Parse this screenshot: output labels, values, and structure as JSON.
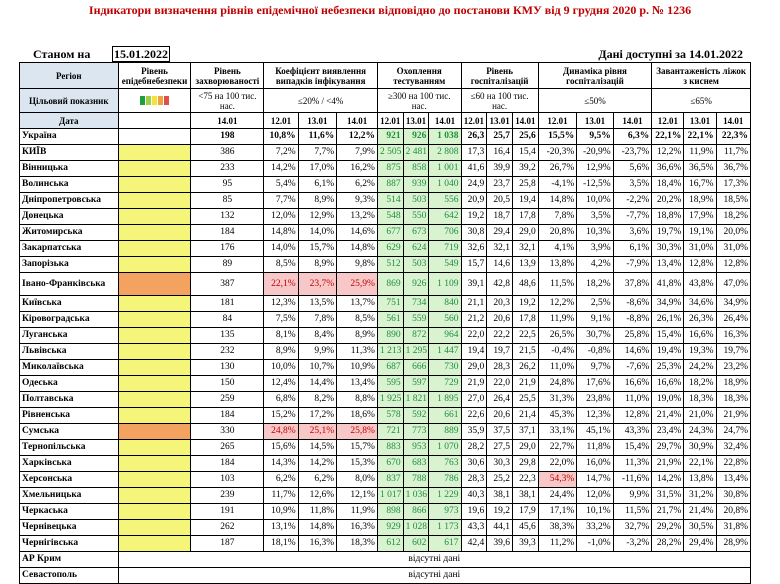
{
  "title": "Індикатори визначення рівнів епідемічної небезпеки відповідно до постанови КМУ від 9 грудня 2020 р. № 1236",
  "as_of_label": "Станом на",
  "as_of_date": "15.01.2022",
  "data_available": "Дані доступні за 14.01.2022",
  "headers": {
    "region": "Регіон",
    "epi_level": "Рівень епідебнебезпеки",
    "incidence": "Рівень захворюваності",
    "detection": "Коефіцієнт виявлення випадків інфікування",
    "testing": "Охоплення тестуванням",
    "hosp": "Рівень госпіталізацій",
    "dyn": "Динаміка рівня госпіталізацій",
    "beds": "Завантаженість ліжок з киснем",
    "target": "Цільовий показник",
    "date": "Дата",
    "t_incidence": "<75 на 100 тис. нас.",
    "t_detection": "≤20% / <4%",
    "t_testing": "≥300 на 100 тис. нас.",
    "t_hosp": "≤60 на 100 тис. нас.",
    "t_dyn": "≤50%",
    "t_beds": "≤65%",
    "d1401": "14.01",
    "d1201": "12.01",
    "d1301": "13.01"
  },
  "legend_colors": [
    "#1f9e3a",
    "#9bd24a",
    "#f2e23a",
    "#f2a23a",
    "#e0504a"
  ],
  "missing_text": "відсутні дані",
  "rows": [
    {
      "name": "Україна",
      "lvl": "",
      "inc": "198",
      "det": [
        "10,8%",
        "11,6%",
        "12,2%"
      ],
      "test": [
        "921",
        "926",
        "1 038"
      ],
      "hosp": [
        "26,3",
        "25,7",
        "25,6"
      ],
      "dyn": [
        "15,5%",
        "9,5%",
        "6,3%"
      ],
      "beds": [
        "22,1%",
        "22,1%",
        "22,3%"
      ]
    },
    {
      "name": "КИЇВ",
      "lvl": "y",
      "inc": "386",
      "det": [
        "7,2%",
        "7,7%",
        "7,9%"
      ],
      "test": [
        "2 505",
        "2 481",
        "2 808"
      ],
      "hosp": [
        "17,3",
        "16,4",
        "15,4"
      ],
      "dyn": [
        "-20,3%",
        "-20,9%",
        "-23,7%"
      ],
      "beds": [
        "12,2%",
        "11,9%",
        "11,7%"
      ]
    },
    {
      "name": "Вінницька",
      "lvl": "y",
      "inc": "233",
      "det": [
        "14,2%",
        "17,0%",
        "16,2%"
      ],
      "test": [
        "875",
        "858",
        "1 001"
      ],
      "hosp": [
        "41,6",
        "39,9",
        "39,2"
      ],
      "dyn": [
        "26,7%",
        "12,9%",
        "5,6%"
      ],
      "beds": [
        "36,6%",
        "36,5%",
        "36,7%"
      ]
    },
    {
      "name": "Волинська",
      "lvl": "y",
      "inc": "95",
      "det": [
        "5,4%",
        "6,1%",
        "6,2%"
      ],
      "test": [
        "887",
        "939",
        "1 040"
      ],
      "hosp": [
        "24,9",
        "23,7",
        "25,8"
      ],
      "dyn": [
        "-4,1%",
        "-12,5%",
        "3,5%"
      ],
      "beds": [
        "18,4%",
        "16,7%",
        "17,3%"
      ]
    },
    {
      "name": "Дніпропетровська",
      "lvl": "y",
      "inc": "85",
      "det": [
        "7,7%",
        "8,9%",
        "9,3%"
      ],
      "test": [
        "514",
        "503",
        "556"
      ],
      "hosp": [
        "20,9",
        "20,5",
        "19,4"
      ],
      "dyn": [
        "14,8%",
        "10,0%",
        "-2,2%"
      ],
      "beds": [
        "20,2%",
        "18,9%",
        "18,5%"
      ]
    },
    {
      "name": "Донецька",
      "lvl": "y",
      "inc": "132",
      "det": [
        "12,0%",
        "12,9%",
        "13,2%"
      ],
      "test": [
        "548",
        "550",
        "642"
      ],
      "hosp": [
        "19,2",
        "18,7",
        "17,8"
      ],
      "dyn": [
        "7,8%",
        "3,5%",
        "-7,7%"
      ],
      "beds": [
        "18,8%",
        "17,9%",
        "18,2%"
      ]
    },
    {
      "name": "Житомирська",
      "lvl": "y",
      "inc": "184",
      "det": [
        "14,8%",
        "14,0%",
        "14,6%"
      ],
      "test": [
        "677",
        "673",
        "706"
      ],
      "hosp": [
        "30,8",
        "29,4",
        "29,0"
      ],
      "dyn": [
        "20,8%",
        "10,3%",
        "3,6%"
      ],
      "beds": [
        "19,7%",
        "19,1%",
        "20,0%"
      ]
    },
    {
      "name": "Закарпатська",
      "lvl": "y",
      "inc": "176",
      "det": [
        "14,0%",
        "15,7%",
        "14,8%"
      ],
      "test": [
        "629",
        "624",
        "719"
      ],
      "hosp": [
        "32,6",
        "32,1",
        "32,1"
      ],
      "dyn": [
        "4,1%",
        "3,9%",
        "6,1%"
      ],
      "beds": [
        "30,3%",
        "31,0%",
        "31,0%"
      ]
    },
    {
      "name": "Запорізька",
      "lvl": "y",
      "inc": "89",
      "det": [
        "8,5%",
        "8,9%",
        "9,8%"
      ],
      "test": [
        "512",
        "503",
        "549"
      ],
      "hosp": [
        "15,7",
        "14,6",
        "13,9"
      ],
      "dyn": [
        "13,8%",
        "4,2%",
        "-7,9%"
      ],
      "beds": [
        "13,4%",
        "12,8%",
        "12,8%"
      ]
    },
    {
      "name": "Івано-Франківська",
      "lvl": "o",
      "inc": "387",
      "det": [
        "22,1%",
        "23,7%",
        "25,9%"
      ],
      "detRed": true,
      "test": [
        "869",
        "926",
        "1 109"
      ],
      "hosp": [
        "39,1",
        "42,8",
        "48,6"
      ],
      "dyn": [
        "11,5%",
        "18,2%",
        "37,8%"
      ],
      "beds": [
        "41,8%",
        "43,8%",
        "47,0%"
      ],
      "tall": true
    },
    {
      "name": "Київська",
      "lvl": "y",
      "inc": "181",
      "det": [
        "12,3%",
        "13,5%",
        "13,7%"
      ],
      "test": [
        "751",
        "734",
        "840"
      ],
      "hosp": [
        "21,1",
        "20,3",
        "19,2"
      ],
      "dyn": [
        "12,2%",
        "2,5%",
        "-8,6%"
      ],
      "beds": [
        "34,9%",
        "34,6%",
        "34,9%"
      ]
    },
    {
      "name": "Кіровоградська",
      "lvl": "y",
      "inc": "84",
      "det": [
        "7,5%",
        "7,8%",
        "8,5%"
      ],
      "test": [
        "561",
        "559",
        "560"
      ],
      "hosp": [
        "21,2",
        "20,6",
        "17,8"
      ],
      "dyn": [
        "11,9%",
        "9,1%",
        "-8,8%"
      ],
      "beds": [
        "26,1%",
        "26,3%",
        "26,4%"
      ]
    },
    {
      "name": "Луганська",
      "lvl": "y",
      "inc": "135",
      "det": [
        "8,1%",
        "8,4%",
        "8,9%"
      ],
      "test": [
        "890",
        "872",
        "964"
      ],
      "hosp": [
        "22,0",
        "22,2",
        "22,5"
      ],
      "dyn": [
        "26,5%",
        "30,7%",
        "25,8%"
      ],
      "beds": [
        "15,4%",
        "16,6%",
        "16,3%"
      ]
    },
    {
      "name": "Львівська",
      "lvl": "y",
      "inc": "232",
      "det": [
        "8,9%",
        "9,9%",
        "11,3%"
      ],
      "test": [
        "1 213",
        "1 295",
        "1 447"
      ],
      "hosp": [
        "19,4",
        "19,7",
        "21,5"
      ],
      "dyn": [
        "-0,4%",
        "-0,8%",
        "14,6%"
      ],
      "beds": [
        "19,4%",
        "19,3%",
        "19,7%"
      ]
    },
    {
      "name": "Миколаївська",
      "lvl": "y",
      "inc": "130",
      "det": [
        "10,0%",
        "10,7%",
        "10,9%"
      ],
      "test": [
        "687",
        "666",
        "730"
      ],
      "hosp": [
        "29,0",
        "28,3",
        "26,2"
      ],
      "dyn": [
        "11,0%",
        "9,7%",
        "-7,6%"
      ],
      "beds": [
        "25,3%",
        "24,2%",
        "23,2%"
      ]
    },
    {
      "name": "Одеська",
      "lvl": "y",
      "inc": "150",
      "det": [
        "12,4%",
        "14,4%",
        "13,4%"
      ],
      "test": [
        "595",
        "597",
        "729"
      ],
      "hosp": [
        "21,9",
        "22,0",
        "21,9"
      ],
      "dyn": [
        "24,8%",
        "17,6%",
        "16,6%"
      ],
      "beds": [
        "16,6%",
        "18,2%",
        "18,9%"
      ]
    },
    {
      "name": "Полтавська",
      "lvl": "y",
      "inc": "259",
      "det": [
        "6,8%",
        "8,2%",
        "8,8%"
      ],
      "test": [
        "1 925",
        "1 821",
        "1 895"
      ],
      "hosp": [
        "27,0",
        "26,4",
        "25,5"
      ],
      "dyn": [
        "31,3%",
        "23,8%",
        "11,0%"
      ],
      "beds": [
        "19,0%",
        "18,3%",
        "18,3%"
      ]
    },
    {
      "name": "Рівненська",
      "lvl": "y",
      "inc": "184",
      "det": [
        "15,2%",
        "17,2%",
        "18,6%"
      ],
      "test": [
        "578",
        "592",
        "661"
      ],
      "hosp": [
        "22,6",
        "20,6",
        "21,4"
      ],
      "dyn": [
        "45,3%",
        "12,3%",
        "12,8%"
      ],
      "beds": [
        "21,4%",
        "21,0%",
        "21,9%"
      ]
    },
    {
      "name": "Сумська",
      "lvl": "o",
      "inc": "330",
      "det": [
        "24,8%",
        "25,1%",
        "25,8%"
      ],
      "detRed": true,
      "test": [
        "721",
        "773",
        "889"
      ],
      "hosp": [
        "35,9",
        "37,5",
        "37,1"
      ],
      "dyn": [
        "33,1%",
        "45,1%",
        "43,3%"
      ],
      "beds": [
        "23,4%",
        "24,3%",
        "24,7%"
      ]
    },
    {
      "name": "Тернопільська",
      "lvl": "y",
      "inc": "265",
      "det": [
        "15,6%",
        "14,5%",
        "15,7%"
      ],
      "test": [
        "883",
        "953",
        "1 070"
      ],
      "hosp": [
        "28,2",
        "27,5",
        "29,0"
      ],
      "dyn": [
        "22,7%",
        "11,8%",
        "15,4%"
      ],
      "beds": [
        "29,7%",
        "30,9%",
        "32,4%"
      ]
    },
    {
      "name": "Харківська",
      "lvl": "y",
      "inc": "184",
      "det": [
        "14,3%",
        "14,2%",
        "15,3%"
      ],
      "test": [
        "670",
        "683",
        "763"
      ],
      "hosp": [
        "30,6",
        "30,3",
        "29,8"
      ],
      "dyn": [
        "22,0%",
        "16,0%",
        "11,3%"
      ],
      "beds": [
        "21,9%",
        "22,1%",
        "22,8%"
      ]
    },
    {
      "name": "Херсонська",
      "lvl": "y",
      "inc": "103",
      "det": [
        "6,2%",
        "6,2%",
        "8,0%"
      ],
      "test": [
        "837",
        "788",
        "786"
      ],
      "hosp": [
        "28,3",
        "25,2",
        "22,3"
      ],
      "dyn": [
        "54,3%",
        "14,7%",
        "-11,6%"
      ],
      "dynRed": true,
      "beds": [
        "14,2%",
        "13,8%",
        "13,4%"
      ]
    },
    {
      "name": "Хмельницька",
      "lvl": "y",
      "inc": "239",
      "det": [
        "11,7%",
        "12,6%",
        "12,1%"
      ],
      "test": [
        "1 017",
        "1 036",
        "1 229"
      ],
      "hosp": [
        "40,3",
        "38,1",
        "38,1"
      ],
      "dyn": [
        "24,4%",
        "12,0%",
        "9,9%"
      ],
      "beds": [
        "31,5%",
        "31,2%",
        "30,8%"
      ]
    },
    {
      "name": "Черкаська",
      "lvl": "y",
      "inc": "191",
      "det": [
        "10,9%",
        "11,8%",
        "11,9%"
      ],
      "test": [
        "898",
        "866",
        "973"
      ],
      "hosp": [
        "19,6",
        "19,2",
        "17,9"
      ],
      "dyn": [
        "17,1%",
        "10,1%",
        "11,5%"
      ],
      "beds": [
        "21,7%",
        "21,4%",
        "20,8%"
      ]
    },
    {
      "name": "Чернівецька",
      "lvl": "y",
      "inc": "262",
      "det": [
        "13,1%",
        "14,8%",
        "16,3%"
      ],
      "test": [
        "929",
        "1 028",
        "1 173"
      ],
      "hosp": [
        "43,3",
        "44,1",
        "45,6"
      ],
      "dyn": [
        "38,3%",
        "33,2%",
        "32,7%"
      ],
      "beds": [
        "29,2%",
        "30,5%",
        "31,8%"
      ]
    },
    {
      "name": "Чернігівська",
      "lvl": "y",
      "inc": "187",
      "det": [
        "18,1%",
        "16,3%",
        "18,3%"
      ],
      "test": [
        "612",
        "602",
        "617"
      ],
      "hosp": [
        "42,4",
        "39,6",
        "39,3"
      ],
      "dyn": [
        "11,2%",
        "-1,0%",
        "-3,2%"
      ],
      "beds": [
        "28,2%",
        "29,4%",
        "28,9%"
      ]
    }
  ],
  "missing_rows": [
    "АР Крим",
    "Севастополь"
  ]
}
